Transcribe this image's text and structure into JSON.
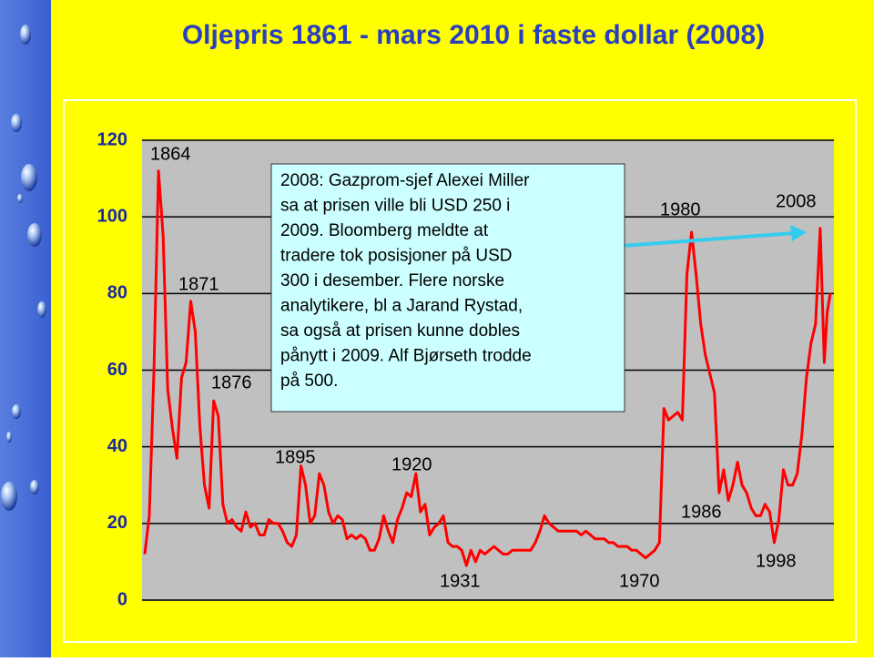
{
  "chart_data": {
    "type": "line",
    "title": "Oljepris 1861 - mars 2010 i faste dollar (2008)",
    "x": [
      1861,
      1862,
      1863,
      1864,
      1865,
      1866,
      1867,
      1868,
      1869,
      1870,
      1871,
      1872,
      1873,
      1874,
      1875,
      1876,
      1877,
      1878,
      1879,
      1880,
      1881,
      1882,
      1883,
      1884,
      1885,
      1886,
      1887,
      1888,
      1889,
      1890,
      1891,
      1892,
      1893,
      1894,
      1895,
      1896,
      1897,
      1898,
      1899,
      1900,
      1901,
      1902,
      1903,
      1904,
      1905,
      1906,
      1907,
      1908,
      1909,
      1910,
      1911,
      1912,
      1913,
      1914,
      1915,
      1916,
      1917,
      1918,
      1919,
      1920,
      1921,
      1922,
      1923,
      1924,
      1925,
      1926,
      1927,
      1928,
      1929,
      1930,
      1931,
      1932,
      1933,
      1934,
      1935,
      1936,
      1937,
      1938,
      1939,
      1940,
      1941,
      1942,
      1943,
      1944,
      1945,
      1946,
      1947,
      1948,
      1949,
      1950,
      1951,
      1952,
      1953,
      1954,
      1955,
      1956,
      1957,
      1958,
      1959,
      1960,
      1961,
      1962,
      1963,
      1964,
      1965,
      1966,
      1967,
      1968,
      1969,
      1970,
      1971,
      1972,
      1973,
      1974,
      1975,
      1976,
      1977,
      1978,
      1979,
      1980,
      1981,
      1982,
      1983,
      1984,
      1985,
      1986,
      1987,
      1988,
      1989,
      1990,
      1991,
      1992,
      1993,
      1994,
      1995,
      1996,
      1997,
      1998,
      1999,
      2000,
      2001,
      2002,
      2003,
      2004,
      2005,
      2006,
      2007,
      2008,
      2008.9,
      2009.5,
      2010.2
    ],
    "values": [
      12,
      22,
      60,
      112,
      95,
      55,
      45,
      37,
      58,
      62,
      78,
      70,
      45,
      30,
      24,
      52,
      48,
      25,
      20,
      21,
      19,
      18,
      23,
      19,
      20,
      17,
      17,
      21,
      20,
      20,
      18,
      15,
      14,
      17,
      35,
      30,
      20,
      22,
      33,
      30,
      23,
      20,
      22,
      21,
      16,
      17,
      16,
      17,
      16,
      13,
      13,
      16,
      22,
      18,
      15,
      21,
      24,
      28,
      27,
      33,
      23,
      25,
      17,
      19,
      20,
      22,
      15,
      14,
      14,
      13,
      9,
      13,
      10,
      13,
      12,
      13,
      14,
      13,
      12,
      12,
      13,
      13,
      13,
      13,
      13,
      15,
      18,
      22,
      20,
      19,
      18,
      18,
      18,
      18,
      18,
      17,
      18,
      17,
      16,
      16,
      16,
      15,
      15,
      14,
      14,
      14,
      13,
      13,
      12,
      11,
      12,
      13,
      15,
      50,
      47,
      48,
      49,
      47,
      85,
      96,
      85,
      72,
      64,
      59,
      54,
      28,
      34,
      26,
      30,
      36,
      30,
      28,
      24,
      22,
      22,
      25,
      23,
      15,
      21,
      34,
      30,
      30,
      33,
      43,
      58,
      67,
      72,
      97,
      62,
      75,
      80
    ],
    "color": "#ff0000",
    "xlim": [
      1861,
      2010.2
    ],
    "ylim": [
      0,
      120
    ],
    "yticks": [
      0,
      20,
      40,
      60,
      80,
      100,
      120
    ],
    "grid": true,
    "annotations": [
      "1864",
      "1871",
      "1876",
      "1895",
      "1920",
      "1931",
      "1970",
      "1980",
      "1986",
      "1998",
      "2008"
    ],
    "note": [
      "2008: Gazprom-sjef Alexei Miller",
      "sa at prisen ville bli USD 250 i",
      "2009. Bloomberg meldte at",
      "tradere tok posisjoner på USD",
      "300 i desember. Flere norske",
      "analytikere, bl a Jarand Rystad,",
      "sa også at prisen kunne dobles",
      "pånytt i 2009. Alf Bjørseth trodde",
      "på 500."
    ]
  }
}
